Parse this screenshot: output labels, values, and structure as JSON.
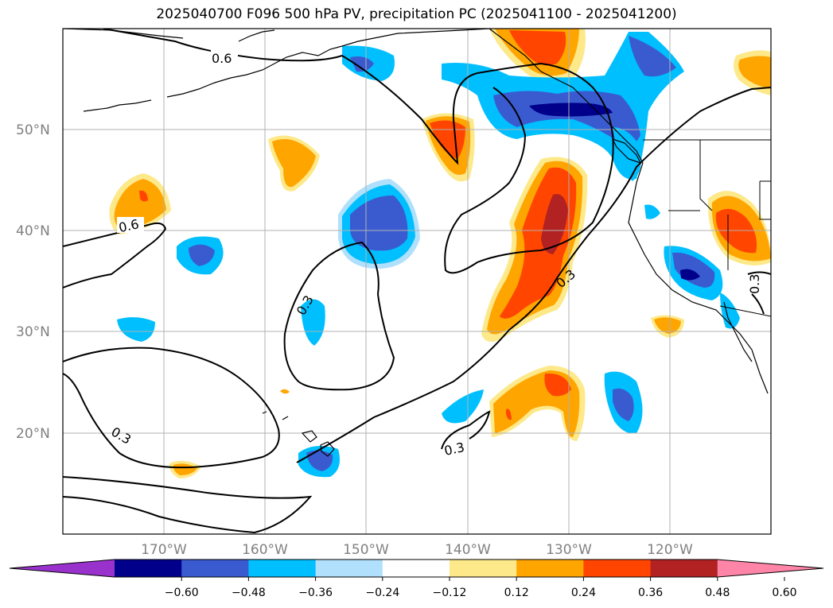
{
  "title": "2025040700 F096 500 hPa PV, precipitation PC (2025041100 - 2025041200)",
  "map": {
    "lat_labels": [
      "50°N",
      "40°N",
      "30°N",
      "20°N"
    ],
    "lon_labels": [
      "170°W",
      "160°W",
      "150°W",
      "140°W",
      "130°W",
      "120°W"
    ],
    "contour_labels": [
      "0.6",
      "0.6",
      "0.3",
      "0.3",
      "0.3",
      "0.3",
      "0.3"
    ]
  },
  "colorbar": {
    "ticks": [
      "−0.60",
      "−0.48",
      "−0.36",
      "−0.24",
      "−0.12",
      "0.12",
      "0.24",
      "0.36",
      "0.48",
      "0.60"
    ],
    "colors": [
      "#9932cc",
      "#00008b",
      "#3a5bd0",
      "#00bfff",
      "#b0e0fb",
      "#ffffff",
      "#fde98a",
      "#ffa500",
      "#ff4500",
      "#b22222",
      "#ff85a8"
    ]
  }
}
